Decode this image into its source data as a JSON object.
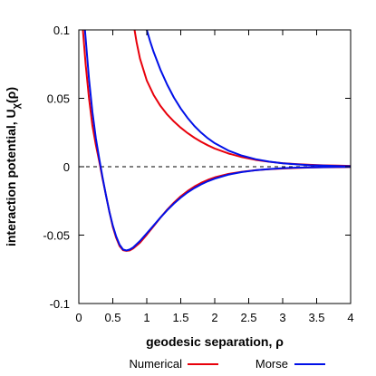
{
  "chart_data": {
    "type": "line",
    "xlabel": "geodesic separation, ρ",
    "ylabel": "interaction potential, U",
    "ylabel_sub": "χ",
    "ylabel_tail": "(ρ)",
    "xlim": [
      0,
      4
    ],
    "ylim": [
      -0.1,
      0.1
    ],
    "x_ticks": [
      0,
      0.5,
      1,
      1.5,
      2,
      2.5,
      3,
      3.5,
      4
    ],
    "x_tick_labels": [
      "0",
      "0.5",
      "1",
      "1.5",
      "2",
      "2.5",
      "3",
      "3.5",
      "4"
    ],
    "y_ticks": [
      -0.1,
      -0.05,
      0,
      0.05,
      0.1
    ],
    "y_tick_labels": [
      "-0.1",
      "-0.05",
      "0",
      "0.05",
      "0.1"
    ],
    "grid": false,
    "zero_line": true,
    "legend_placement": "bottom",
    "series": [
      {
        "name": "Numerical",
        "color": "#e8000b",
        "curves": [
          {
            "x": [
              0.06,
              0.1,
              0.15,
              0.2,
              0.25,
              0.3,
              0.35,
              0.4,
              0.45,
              0.5,
              0.55,
              0.6,
              0.65,
              0.7,
              0.75,
              0.8,
              0.9,
              1.0,
              1.1,
              1.2,
              1.3,
              1.4,
              1.5,
              1.6,
              1.7,
              1.8,
              1.9,
              2.0,
              2.2,
              2.4,
              2.6,
              2.8,
              3.0,
              3.2,
              3.4,
              3.6,
              3.8,
              4.0
            ],
            "y": [
              0.1,
              0.075,
              0.05,
              0.03,
              0.016,
              0.004,
              -0.009,
              -0.021,
              -0.033,
              -0.044,
              -0.052,
              -0.058,
              -0.061,
              -0.0615,
              -0.0612,
              -0.0598,
              -0.0555,
              -0.0497,
              -0.0435,
              -0.0373,
              -0.0314,
              -0.0262,
              -0.0216,
              -0.0178,
              -0.0145,
              -0.0118,
              -0.0096,
              -0.0078,
              -0.0053,
              -0.0037,
              -0.0026,
              -0.0018,
              -0.0013,
              -0.0009,
              -0.0006,
              -0.0004,
              -0.0003,
              -0.0002
            ]
          },
          {
            "x": [
              0.82,
              0.85,
              0.9,
              1.0,
              1.1,
              1.2,
              1.3,
              1.4,
              1.5,
              1.6,
              1.7,
              1.8,
              1.9,
              2.0,
              2.2,
              2.4,
              2.6,
              2.8,
              3.0,
              3.2,
              3.4,
              3.6,
              3.8,
              4.0
            ],
            "y": [
              0.1,
              0.091,
              0.079,
              0.063,
              0.0525,
              0.0445,
              0.0382,
              0.033,
              0.0285,
              0.0246,
              0.0212,
              0.0182,
              0.0156,
              0.0133,
              0.0097,
              0.007,
              0.005,
              0.0036,
              0.0026,
              0.0019,
              0.0014,
              0.001,
              0.0008,
              0.0006
            ]
          }
        ]
      },
      {
        "name": "Morse",
        "color": "#0010e8",
        "curves": [
          {
            "x": [
              0.09,
              0.12,
              0.15,
              0.2,
              0.25,
              0.3,
              0.35,
              0.4,
              0.45,
              0.5,
              0.55,
              0.6,
              0.65,
              0.7,
              0.75,
              0.8,
              0.9,
              1.0,
              1.1,
              1.2,
              1.3,
              1.4,
              1.5,
              1.6,
              1.7,
              1.8,
              1.9,
              2.0,
              2.2,
              2.4,
              2.6,
              2.8,
              3.0,
              3.2,
              3.4,
              3.6,
              3.8,
              4.0
            ],
            "y": [
              0.1,
              0.082,
              0.064,
              0.04,
              0.021,
              0.006,
              -0.008,
              -0.021,
              -0.033,
              -0.043,
              -0.051,
              -0.057,
              -0.0605,
              -0.0612,
              -0.0605,
              -0.059,
              -0.0543,
              -0.0487,
              -0.043,
              -0.0372,
              -0.0318,
              -0.0269,
              -0.0226,
              -0.0188,
              -0.0156,
              -0.0129,
              -0.0106,
              -0.0087,
              -0.0058,
              -0.0039,
              -0.0026,
              -0.0017,
              -0.0011,
              -0.0007,
              -0.0005,
              -0.0003,
              -0.0002,
              -0.0001
            ]
          },
          {
            "x": [
              1.0,
              1.05,
              1.1,
              1.2,
              1.3,
              1.4,
              1.5,
              1.6,
              1.7,
              1.8,
              1.9,
              2.0,
              2.2,
              2.4,
              2.6,
              2.8,
              3.0,
              3.2,
              3.4,
              3.6,
              3.8,
              4.0
            ],
            "y": [
              0.1,
              0.0915,
              0.084,
              0.071,
              0.06,
              0.0505,
              0.0425,
              0.0357,
              0.0298,
              0.0249,
              0.0207,
              0.0172,
              0.0118,
              0.0081,
              0.0055,
              0.0037,
              0.0025,
              0.0017,
              0.0011,
              0.0008,
              0.0005,
              0.0003
            ]
          }
        ]
      }
    ]
  }
}
